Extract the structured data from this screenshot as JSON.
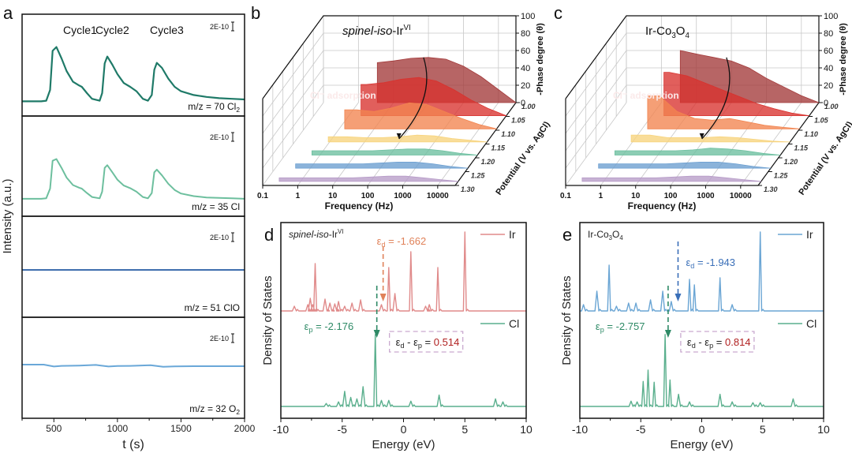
{
  "chart_data": [
    {
      "panel": "a",
      "type": "line",
      "xlabel": "t (s)",
      "ylabel": "Intensity (a.u.)",
      "xlim": [
        250,
        2000
      ],
      "xticks": [
        500,
        1000,
        1500,
        2000
      ],
      "cycle_labels": [
        "Cycle1",
        "Cycle2",
        "Cycle3"
      ],
      "cycle_positions": [
        500,
        920,
        1350
      ],
      "scale_bar_label": "2E-10",
      "series": [
        {
          "name": "m/z = 70 Cl",
          "subscript": "2",
          "color": "#1f7a68",
          "x": [
            250,
            400,
            440,
            470,
            490,
            520,
            560,
            600,
            650,
            700,
            720,
            760,
            800,
            860,
            880,
            900,
            920,
            960,
            1000,
            1050,
            1100,
            1150,
            1200,
            1240,
            1270,
            1290,
            1310,
            1350,
            1400,
            1450,
            1500,
            1600,
            1700,
            1800,
            1900,
            2000
          ],
          "y": [
            0.02,
            0.02,
            0.03,
            0.2,
            0.82,
            0.88,
            0.7,
            0.5,
            0.33,
            0.27,
            0.25,
            0.15,
            0.06,
            0.03,
            0.15,
            0.62,
            0.73,
            0.6,
            0.45,
            0.31,
            0.25,
            0.18,
            0.06,
            0.03,
            0.12,
            0.52,
            0.63,
            0.55,
            0.38,
            0.25,
            0.18,
            0.12,
            0.09,
            0.07,
            0.06,
            0.05
          ]
        },
        {
          "name": "m/z = 35 Cl",
          "subscript": "",
          "color": "#6dbf9e",
          "x": [
            250,
            400,
            440,
            470,
            490,
            520,
            560,
            600,
            650,
            700,
            720,
            760,
            800,
            860,
            880,
            900,
            920,
            960,
            1000,
            1050,
            1100,
            1150,
            1200,
            1240,
            1270,
            1290,
            1310,
            1350,
            1400,
            1450,
            1500,
            1600,
            1700,
            1800,
            1900,
            2000
          ],
          "y": [
            0.02,
            0.02,
            0.03,
            0.25,
            0.88,
            0.92,
            0.72,
            0.5,
            0.33,
            0.27,
            0.25,
            0.15,
            0.06,
            0.03,
            0.18,
            0.72,
            0.78,
            0.62,
            0.45,
            0.32,
            0.26,
            0.18,
            0.06,
            0.03,
            0.15,
            0.62,
            0.68,
            0.55,
            0.36,
            0.22,
            0.14,
            0.08,
            0.05,
            0.04,
            0.03,
            0.02
          ]
        },
        {
          "name": "m/z = 51 ClO",
          "subscript": "",
          "color": "#3f6fae",
          "x": [
            250,
            2000
          ],
          "y": [
            0.5,
            0.5
          ]
        },
        {
          "name": "m/z = 32 O",
          "subscript": "2",
          "color": "#6aa8d8",
          "x": [
            250,
            420,
            500,
            560,
            700,
            830,
            930,
            1000,
            1100,
            1260,
            1360,
            1450,
            1600,
            2000
          ],
          "y": [
            0.62,
            0.62,
            0.56,
            0.58,
            0.59,
            0.61,
            0.56,
            0.575,
            0.58,
            0.6,
            0.55,
            0.565,
            0.57,
            0.57
          ]
        }
      ]
    },
    {
      "panel": "b",
      "type": "area",
      "title": "spinel-iso-Ir",
      "title_superscript": "VI",
      "xlabel": "Frequency (Hz)",
      "xticks": [
        "0.1",
        "1",
        "10",
        "100",
        "1000",
        "10000"
      ],
      "xlim_log10": [
        -1,
        4.5
      ],
      "zlabel": "-Phase degree (θ)",
      "zticks": [
        0,
        20,
        40,
        60,
        80,
        100
      ],
      "zlim": [
        0,
        100
      ],
      "ylabel": "Potential (V vs. AgCl)",
      "potentials": [
        "1.00",
        "1.05",
        "1.10",
        "1.15",
        "1.20",
        "1.25",
        "1.30"
      ],
      "annotation": "Cl⁻ adsorption",
      "log_f": [
        0.5,
        1.0,
        1.5,
        2.0,
        2.5,
        3.0,
        3.5,
        4.0,
        4.5
      ],
      "series": [
        {
          "potential": "1.00",
          "color": "#a33a3a",
          "phase": [
            46,
            48,
            51,
            52,
            50,
            42,
            30,
            15,
            0
          ]
        },
        {
          "potential": "1.05",
          "color": "#d8322e",
          "phase": [
            36,
            38,
            42,
            44,
            40,
            30,
            18,
            8,
            0
          ]
        },
        {
          "potential": "1.10",
          "color": "#f2844f",
          "phase": [
            22,
            20,
            24,
            30,
            28,
            20,
            12,
            5,
            0
          ]
        },
        {
          "potential": "1.15",
          "color": "#f7d37c",
          "phase": [
            6,
            5,
            5,
            6,
            8,
            7,
            4,
            2,
            0
          ]
        },
        {
          "potential": "1.20",
          "color": "#6bbf9f",
          "phase": [
            5,
            5,
            5,
            6,
            7,
            7,
            5,
            2,
            0
          ]
        },
        {
          "potential": "1.25",
          "color": "#6a9ed0",
          "phase": [
            5,
            5,
            5,
            6,
            7,
            7,
            5,
            2,
            0
          ]
        },
        {
          "potential": "1.30",
          "color": "#b79cc8",
          "phase": [
            4,
            4,
            4,
            5,
            6,
            6,
            4,
            2,
            0
          ]
        }
      ]
    },
    {
      "panel": "c",
      "type": "area",
      "title": "Ir-Co",
      "title_sub1": "3",
      "title_mid": "O",
      "title_sub2": "4",
      "xlabel": "Frequency (Hz)",
      "xticks": [
        "0.1",
        "1",
        "10",
        "100",
        "1000",
        "10000"
      ],
      "xlim_log10": [
        -1,
        4.5
      ],
      "zlabel": "-Phase degree (θ)",
      "zticks": [
        0,
        20,
        40,
        60,
        80,
        100
      ],
      "zlim": [
        0,
        100
      ],
      "ylabel": "Potential (V vs. AgCl)",
      "potentials": [
        "1.00",
        "1.05",
        "1.10",
        "1.15",
        "1.20",
        "1.25",
        "1.30"
      ],
      "annotation": "Cl⁻ adsorption",
      "log_f": [
        0.5,
        1.0,
        1.5,
        2.0,
        2.5,
        3.0,
        3.5,
        4.0,
        4.5
      ],
      "series": [
        {
          "potential": "1.00",
          "color": "#a33a3a",
          "phase": [
            60,
            56,
            52,
            48,
            40,
            28,
            18,
            8,
            0
          ]
        },
        {
          "potential": "1.05",
          "color": "#d8322e",
          "phase": [
            50,
            46,
            38,
            30,
            22,
            14,
            8,
            3,
            0
          ]
        },
        {
          "potential": "1.10",
          "color": "#f2844f",
          "phase": [
            38,
            20,
            12,
            10,
            12,
            8,
            4,
            2,
            0
          ]
        },
        {
          "potential": "1.15",
          "color": "#f7d37c",
          "phase": [
            8,
            5,
            5,
            5,
            6,
            5,
            3,
            1,
            0
          ]
        },
        {
          "potential": "1.20",
          "color": "#6bbf9f",
          "phase": [
            5,
            5,
            5,
            6,
            8,
            7,
            5,
            2,
            0
          ]
        },
        {
          "potential": "1.25",
          "color": "#6a9ed0",
          "phase": [
            5,
            5,
            5,
            6,
            7,
            7,
            5,
            2,
            0
          ]
        },
        {
          "potential": "1.30",
          "color": "#b79cc8",
          "phase": [
            4,
            4,
            4,
            5,
            6,
            6,
            4,
            2,
            0
          ]
        }
      ]
    },
    {
      "panel": "d",
      "type": "line",
      "title": "spinel-iso-Ir",
      "title_superscript": "VI",
      "xlabel": "Energy (eV)",
      "ylabel": "Density of States",
      "xlim": [
        -10,
        10
      ],
      "xticks": [
        -10,
        -5,
        0,
        5,
        10
      ],
      "legend": [
        "Ir",
        "Cl"
      ],
      "epsilon_d": -1.662,
      "epsilon_p": -2.176,
      "epsilon_d_label": "-1.662",
      "epsilon_p_label": "-2.176",
      "diff_label": "0.514",
      "series": [
        {
          "name": "Ir",
          "color": "#e08a8a",
          "peaks": [
            [
              -8.9,
              0.06
            ],
            [
              -7.8,
              0.08
            ],
            [
              -7.6,
              0.16
            ],
            [
              -7.4,
              0.08
            ],
            [
              -7.2,
              0.6
            ],
            [
              -6.4,
              0.15
            ],
            [
              -6.0,
              0.1
            ],
            [
              -5.6,
              0.09
            ],
            [
              -5.3,
              0.12
            ],
            [
              -4.8,
              0.06
            ],
            [
              -4.2,
              0.1
            ],
            [
              -3.5,
              0.14
            ],
            [
              -1.8,
              0.08
            ],
            [
              -1.2,
              0.55
            ],
            [
              -0.7,
              0.22
            ],
            [
              0.6,
              0.75
            ],
            [
              1.8,
              0.06
            ],
            [
              2.1,
              0.08
            ],
            [
              2.8,
              0.55
            ],
            [
              5.0,
              1.0
            ]
          ]
        },
        {
          "name": "Cl",
          "color": "#5aaf8d",
          "peaks": [
            [
              -6.3,
              0.04
            ],
            [
              -5.3,
              0.06
            ],
            [
              -4.8,
              0.2
            ],
            [
              -4.3,
              0.12
            ],
            [
              -3.8,
              0.1
            ],
            [
              -3.3,
              0.26
            ],
            [
              -2.3,
              0.95
            ],
            [
              -1.8,
              0.08
            ],
            [
              -1.2,
              0.08
            ],
            [
              0.6,
              0.07
            ],
            [
              2.9,
              0.15
            ],
            [
              7.5,
              0.1
            ],
            [
              8.1,
              0.06
            ]
          ]
        }
      ]
    },
    {
      "panel": "e",
      "type": "line",
      "title": "Ir-Co",
      "title_sub1": "3",
      "title_mid": "O",
      "title_sub2": "4",
      "xlabel": "Energy (eV)",
      "ylabel": "Density of States",
      "xlim": [
        -10,
        10
      ],
      "xticks": [
        -10,
        -5,
        0,
        5,
        10
      ],
      "legend": [
        "Ir",
        "Cl"
      ],
      "epsilon_d": -1.943,
      "epsilon_p": -2.757,
      "epsilon_d_label": "-1.943",
      "epsilon_p_label": "-2.757",
      "diff_label": "0.814",
      "series": [
        {
          "name": "Ir",
          "color": "#6aa5d4",
          "peaks": [
            [
              -9.7,
              0.08
            ],
            [
              -8.6,
              0.25
            ],
            [
              -7.6,
              0.58
            ],
            [
              -7.0,
              0.06
            ],
            [
              -6.0,
              0.1
            ],
            [
              -5.4,
              0.1
            ],
            [
              -4.2,
              0.14
            ],
            [
              -3.2,
              0.25
            ],
            [
              -2.5,
              0.12
            ],
            [
              -1.0,
              0.4
            ],
            [
              -0.6,
              0.33
            ],
            [
              1.5,
              0.42
            ],
            [
              2.5,
              0.08
            ],
            [
              4.8,
              1.0
            ]
          ]
        },
        {
          "name": "Cl",
          "color": "#5aaf8d",
          "peaks": [
            [
              -5.8,
              0.07
            ],
            [
              -5.3,
              0.06
            ],
            [
              -4.8,
              0.33
            ],
            [
              -4.4,
              0.48
            ],
            [
              -3.9,
              0.32
            ],
            [
              -3.0,
              0.95
            ],
            [
              -2.6,
              0.35
            ],
            [
              -1.9,
              0.16
            ],
            [
              -1.0,
              0.06
            ],
            [
              1.5,
              0.16
            ],
            [
              2.5,
              0.06
            ],
            [
              4.2,
              0.05
            ],
            [
              4.8,
              0.05
            ],
            [
              7.5,
              0.1
            ]
          ]
        }
      ]
    }
  ],
  "panel_labels": [
    "a",
    "b",
    "c",
    "d",
    "e"
  ]
}
